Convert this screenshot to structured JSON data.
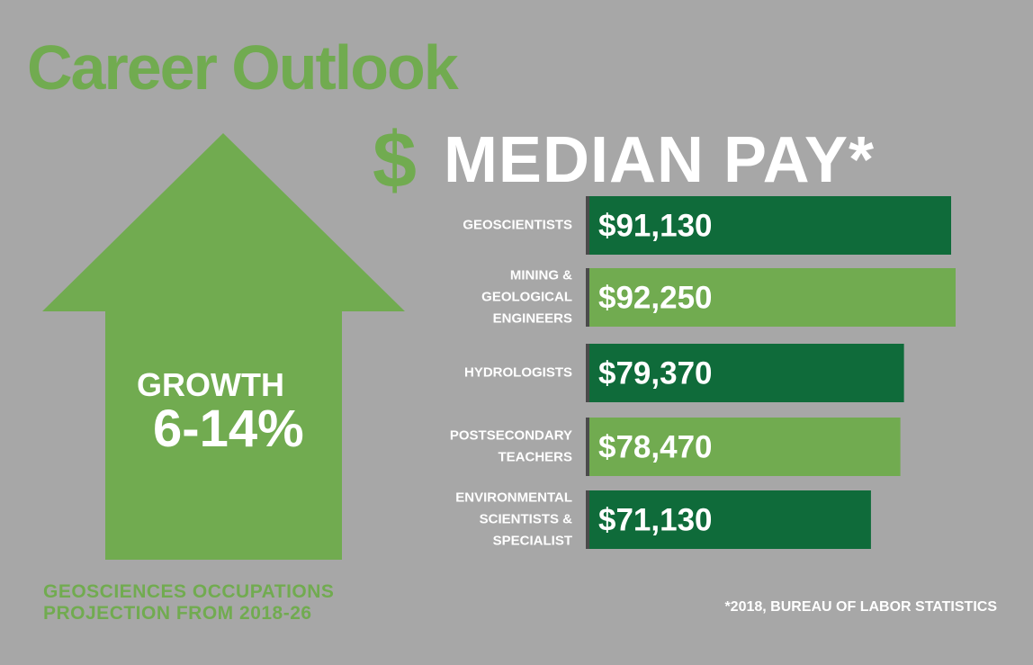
{
  "title": "Career Outlook",
  "pay_heading": {
    "symbol": "$",
    "text": "MEDIAN PAY*"
  },
  "growth": {
    "label": "GROWTH",
    "value": "6-14%"
  },
  "projection": [
    "GEOSCIENCES OCCUPATIONS",
    "PROJECTION FROM 2018-26"
  ],
  "source_note": "*2018, BUREAU OF LABOR STATISTICS",
  "colors": {
    "background": "#a7a7a7",
    "light_green": "#71ab50",
    "dark_green": "#0f6b3a",
    "bar_edge": "#4a4a4a",
    "text": "#ffffff"
  },
  "chart_data": {
    "type": "bar",
    "orientation": "horizontal",
    "categories": [
      [
        "GEOSCIENTISTS"
      ],
      [
        "MINING &",
        "GEOLOGICAL",
        "ENGINEERS"
      ],
      [
        "HYDROLOGISTS"
      ],
      [
        "POSTSECONDARY",
        "TEACHERS"
      ],
      [
        "ENVIRONMENTAL",
        "SCIENTISTS &",
        "SPECIALIST"
      ]
    ],
    "values": [
      91130,
      92250,
      79370,
      78470,
      71130
    ],
    "value_labels": [
      "$91,130",
      "$92,250",
      "$79,370",
      "$78,470",
      "$71,130"
    ],
    "bar_colors": [
      "#0f6b3a",
      "#71ab50",
      "#0f6b3a",
      "#71ab50",
      "#0f6b3a"
    ]
  }
}
